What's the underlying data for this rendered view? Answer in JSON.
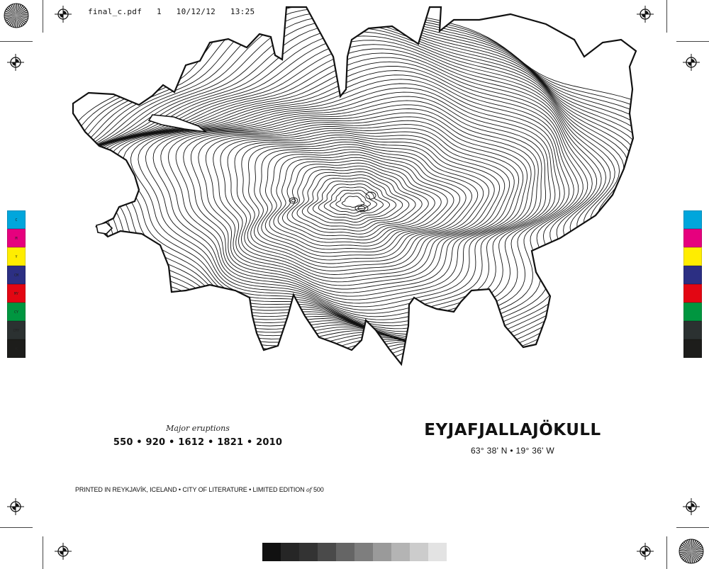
{
  "slug": {
    "filename": "final_c.pdf",
    "page": "1",
    "date": "10/12/12",
    "time": "13:25"
  },
  "eruptions": {
    "caption": "Major eruptions",
    "years": [
      "550",
      "920",
      "1612",
      "1821",
      "2010"
    ],
    "separator": "•"
  },
  "volcano": {
    "name": "EYJAFJALLAJÖKULL",
    "coordinates": "63° 38' N • 19° 36' W"
  },
  "footer": {
    "before": "PRINTED IN REYKJAVÍK, ICELAND • CITY OF LITERATURE • LIMITED EDITION",
    "of_word": "of",
    "after": "500"
  },
  "color_bar_left": [
    {
      "label": "C",
      "color": "#00a6dc"
    },
    {
      "label": "M",
      "color": "#e6007e"
    },
    {
      "label": "Y",
      "color": "#ffed00"
    },
    {
      "label": "CM",
      "color": "#2c2f83"
    },
    {
      "label": "MY",
      "color": "#e30613"
    },
    {
      "label": "CY",
      "color": "#009640"
    },
    {
      "label": "CMY",
      "color": "#2b3131"
    },
    {
      "label": "K",
      "color": "#1d1d1b"
    }
  ],
  "color_bar_right": [
    "#00a6dc",
    "#e6007e",
    "#ffed00",
    "#2c2f83",
    "#e30613",
    "#009640",
    "#2b3131",
    "#1d1d1b"
  ],
  "grey_ramp": [
    "#111111",
    "#262626",
    "#333333",
    "#4a4a4a",
    "#656565",
    "#7e7e7e",
    "#9a9a9a",
    "#b4b4b4",
    "#cccccc",
    "#e3e3e3"
  ],
  "map": {
    "type": "topographic contour map",
    "feature": "glacier"
  }
}
